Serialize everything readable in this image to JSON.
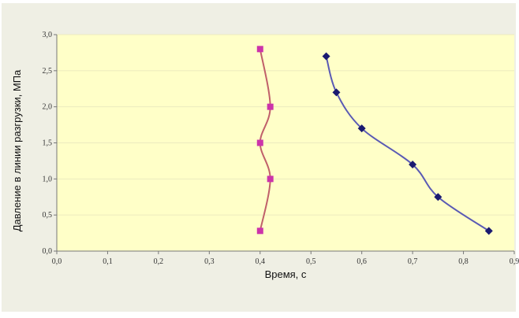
{
  "chart_data": {
    "type": "scatter",
    "title": "",
    "xlabel": "Время, с",
    "ylabel": "Давление в линии разгрузки, МПа",
    "xlim": [
      0,
      0.9
    ],
    "ylim": [
      0,
      3.0
    ],
    "x_ticks": [
      "0,0",
      "0,1",
      "0,2",
      "0,3",
      "0,4",
      "0,5",
      "0,6",
      "0,7",
      "0,8",
      "0,9"
    ],
    "y_ticks": [
      "0,0",
      "0,5",
      "1,0",
      "1,5",
      "2,0",
      "2,5",
      "3,0"
    ],
    "grid": "horizontal",
    "legend": "none",
    "colors": {
      "plot_background": "#ffffc8",
      "chart_background": "#efefe4"
    },
    "series": [
      {
        "color": "#c0606a",
        "marker": "square",
        "marker_color": "#cc33aa",
        "points": [
          [
            0.4,
            2.8
          ],
          [
            0.42,
            2.0
          ],
          [
            0.4,
            1.5
          ],
          [
            0.42,
            1.0
          ],
          [
            0.4,
            0.28
          ]
        ]
      },
      {
        "color": "#5a5ab4",
        "marker": "diamond",
        "marker_color": "#1a1a70",
        "points": [
          [
            0.53,
            2.7
          ],
          [
            0.55,
            2.2
          ],
          [
            0.6,
            1.7
          ],
          [
            0.7,
            1.2
          ],
          [
            0.75,
            0.75
          ],
          [
            0.85,
            0.28
          ]
        ]
      }
    ]
  }
}
